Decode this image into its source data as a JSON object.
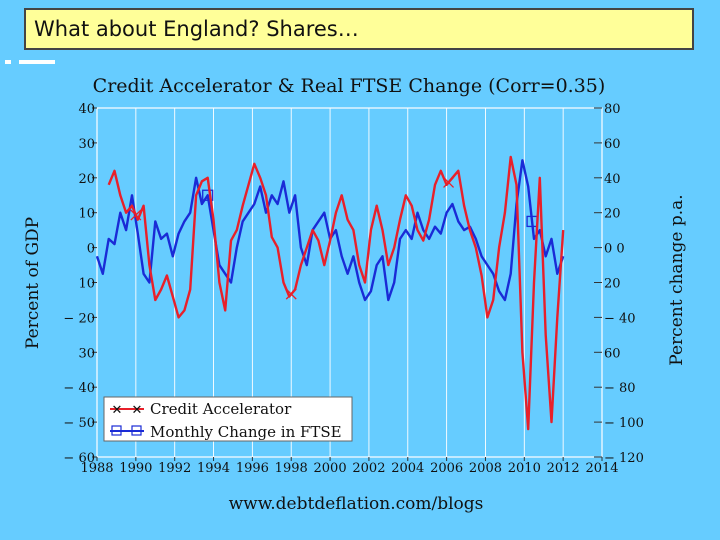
{
  "slide": {
    "title": "What about England? Shares…"
  },
  "colors": {
    "background": "#66ccff",
    "title_box": "#ffff99",
    "credit": "#e8202a",
    "ftse": "#1a2bd6"
  },
  "chart_data": {
    "type": "line",
    "title": "Credit Accelerator & Real FTSE Change (Corr=0.35)",
    "footer": "www.debtdeflation.com/blogs",
    "x_ticks": [
      1988,
      1990,
      1992,
      1994,
      1996,
      1998,
      2000,
      2002,
      2004,
      2006,
      2008,
      2010,
      2012,
      2014
    ],
    "xlim": [
      1988,
      2014
    ],
    "y_left": {
      "label": "Percent of GDP",
      "lim": [
        -60,
        40
      ],
      "ticks": [
        40,
        30,
        20,
        10,
        0,
        -10,
        -20,
        -30,
        -40,
        -50,
        -60
      ],
      "tick_labels": [
        "40",
        "30",
        "20",
        "10",
        "0",
        "10",
        "− 20",
        "30",
        "− 40",
        "− 50",
        "− 60"
      ]
    },
    "y_right": {
      "label": "Percent change p.a.",
      "lim": [
        -120,
        80
      ],
      "ticks": [
        80,
        60,
        40,
        20,
        0,
        -20,
        -40,
        -60,
        -80,
        -100,
        -120
      ],
      "tick_labels": [
        "80",
        "60",
        "40",
        "20",
        "0 0",
        "20",
        "− 40",
        "60",
        "− 80",
        "− 100",
        "− 120"
      ]
    },
    "legend": {
      "placement": "bottom-left",
      "entries": [
        "Credit Accelerator",
        "Monthly Change in FTSE"
      ]
    },
    "series": [
      {
        "name": "Credit Accelerator",
        "axis": "left",
        "color": "#e8202a",
        "marker": "x",
        "marker_x": [
          1990.0,
          1998.0,
          2006.1
        ],
        "x": [
          1988.6,
          1988.9,
          1989.2,
          1989.5,
          1989.8,
          1990.1,
          1990.4,
          1990.7,
          1991.0,
          1991.3,
          1991.6,
          1991.9,
          1992.2,
          1992.5,
          1992.8,
          1993.1,
          1993.4,
          1993.7,
          1994.0,
          1994.3,
          1994.6,
          1994.9,
          1995.2,
          1995.5,
          1995.8,
          1996.1,
          1996.4,
          1996.7,
          1997.0,
          1997.3,
          1997.6,
          1997.9,
          1998.2,
          1998.5,
          1998.8,
          1999.1,
          1999.4,
          1999.7,
          2000.0,
          2000.3,
          2000.6,
          2000.9,
          2001.2,
          2001.5,
          2001.8,
          2002.1,
          2002.4,
          2002.7,
          2003.0,
          2003.3,
          2003.6,
          2003.9,
          2004.2,
          2004.5,
          2004.8,
          2005.1,
          2005.4,
          2005.7,
          2006.0,
          2006.3,
          2006.6,
          2006.9,
          2007.2,
          2007.5,
          2007.8,
          2008.1,
          2008.4,
          2008.7,
          2009.0,
          2009.3,
          2009.6,
          2009.9,
          2010.2,
          2010.5,
          2010.8,
          2011.1,
          2011.4,
          2011.7,
          2012.0
        ],
        "y": [
          18,
          22,
          15,
          10,
          12,
          8,
          12,
          -5,
          -15,
          -12,
          -8,
          -14,
          -20,
          -18,
          -12,
          15,
          19,
          20,
          8,
          -10,
          -18,
          2,
          5,
          12,
          18,
          24,
          20,
          15,
          3,
          0,
          -10,
          -14,
          -12,
          -5,
          0,
          5,
          2,
          -5,
          2,
          10,
          15,
          8,
          5,
          -5,
          -10,
          5,
          12,
          5,
          -5,
          0,
          8,
          15,
          12,
          5,
          2,
          8,
          18,
          22,
          18,
          20,
          22,
          12,
          5,
          0,
          -8,
          -20,
          -15,
          0,
          10,
          26,
          18,
          -30,
          -52,
          -10,
          20,
          -25,
          -50,
          -20,
          5
        ]
      },
      {
        "name": "Monthly Change in FTSE",
        "axis": "right",
        "color": "#1a2bd6",
        "marker": "square",
        "marker_x": [
          1993.7,
          2010.4
        ],
        "x": [
          1988.0,
          1988.3,
          1988.6,
          1988.9,
          1989.2,
          1989.5,
          1989.8,
          1990.1,
          1990.4,
          1990.7,
          1991.0,
          1991.3,
          1991.6,
          1991.9,
          1992.2,
          1992.5,
          1992.8,
          1993.1,
          1993.4,
          1993.7,
          1994.0,
          1994.3,
          1994.6,
          1994.9,
          1995.2,
          1995.5,
          1995.8,
          1996.1,
          1996.4,
          1996.7,
          1997.0,
          1997.3,
          1997.6,
          1997.9,
          1998.2,
          1998.5,
          1998.8,
          1999.1,
          1999.4,
          1999.7,
          2000.0,
          2000.3,
          2000.6,
          2000.9,
          2001.2,
          2001.5,
          2001.8,
          2002.1,
          2002.4,
          2002.7,
          2003.0,
          2003.3,
          2003.6,
          2003.9,
          2004.2,
          2004.5,
          2004.8,
          2005.1,
          2005.4,
          2005.7,
          2006.0,
          2006.3,
          2006.6,
          2006.9,
          2007.2,
          2007.5,
          2007.8,
          2008.1,
          2008.4,
          2008.7,
          2009.0,
          2009.3,
          2009.6,
          2009.9,
          2010.2,
          2010.5,
          2010.8,
          2011.1,
          2011.4,
          2011.7,
          2012.0
        ],
        "y": [
          -5,
          -15,
          5,
          2,
          20,
          10,
          30,
          8,
          -15,
          -20,
          15,
          5,
          8,
          -5,
          8,
          15,
          20,
          40,
          25,
          30,
          10,
          -10,
          -15,
          -20,
          0,
          15,
          20,
          25,
          35,
          20,
          30,
          25,
          38,
          20,
          30,
          0,
          -10,
          10,
          15,
          20,
          5,
          10,
          -5,
          -15,
          -5,
          -20,
          -30,
          -25,
          -10,
          -5,
          -30,
          -20,
          5,
          10,
          5,
          20,
          10,
          5,
          12,
          8,
          20,
          25,
          15,
          10,
          12,
          5,
          -5,
          -10,
          -15,
          -25,
          -30,
          -15,
          25,
          50,
          35,
          5,
          10,
          -5,
          5,
          -15,
          -5
        ]
      }
    ]
  }
}
